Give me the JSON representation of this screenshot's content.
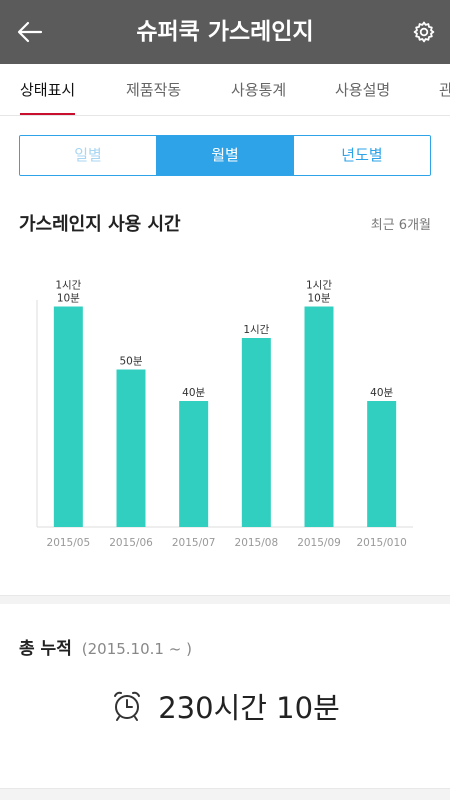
{
  "appbar": {
    "title": "슈퍼쿡 가스레인지",
    "back_icon": "arrow-left-icon",
    "settings_icon": "gear-icon"
  },
  "tabs": [
    {
      "label": "상태표시",
      "active": true
    },
    {
      "label": "제품작동",
      "active": false
    },
    {
      "label": "사용통계",
      "active": false
    },
    {
      "label": "사용설명",
      "active": false
    },
    {
      "label": "관",
      "active": false
    }
  ],
  "period_toggle": {
    "daily": "일별",
    "monthly": "월별",
    "yearly": "년도별",
    "selected": "월별"
  },
  "usage_section": {
    "title": "가스레인지 사용 시간",
    "subtitle": "최근 6개월"
  },
  "chart_data": {
    "type": "bar",
    "categories": [
      "2015/05",
      "2015/06",
      "2015/07",
      "2015/08",
      "2015/09",
      "2015/010"
    ],
    "values": [
      70,
      50,
      40,
      60,
      70,
      40
    ],
    "unit": "minutes",
    "data_labels": [
      [
        "1시간",
        "10분"
      ],
      [
        "50분"
      ],
      [
        "40분"
      ],
      [
        "1시간"
      ],
      [
        "1시간",
        "10분"
      ],
      [
        "40분"
      ]
    ],
    "ylim": [
      0,
      80
    ],
    "bar_color": "#30cfc0",
    "grid": false,
    "legend": "none"
  },
  "total": {
    "title": "총 누적",
    "range": "(2015.10.1 ~ )",
    "icon": "alarm-clock-icon",
    "value": "230시간 10분"
  },
  "colors": {
    "appbar": "#5b5b5b",
    "accent_blue": "#2ea3e8",
    "tab_indicator": "#c8102e",
    "bar": "#30cfc0"
  }
}
